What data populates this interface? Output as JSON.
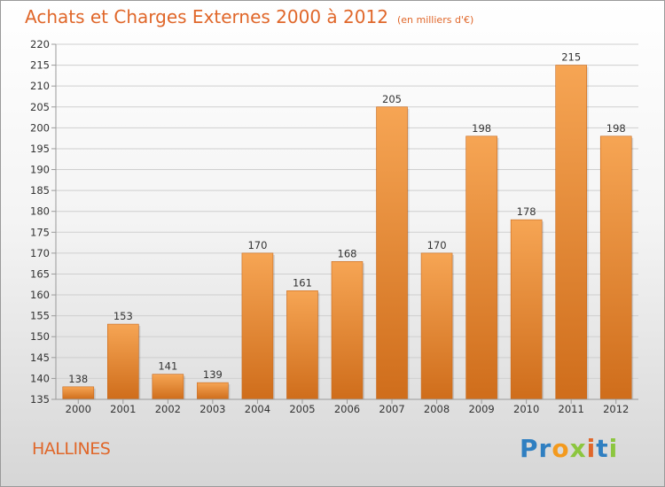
{
  "title": "Achats et Charges Externes 2000 à 2012",
  "unit_note": "(en milliers d'€)",
  "commune": "HALLINES",
  "logo": {
    "letters": [
      "P",
      "r",
      "o",
      "x",
      "i",
      "t",
      "i"
    ],
    "colors": [
      "#2f7fc1",
      "#2f7fc1",
      "#f39a1e",
      "#8cc63f",
      "#e0672a",
      "#2f7fc1",
      "#8cc63f"
    ]
  },
  "colors": {
    "bar_top": "#f6a554",
    "bar_bottom": "#cf6d1b",
    "grid": "#cfcfcf",
    "axis": "#9a9a9a",
    "accent": "#e0672a"
  },
  "chart_data": {
    "type": "bar",
    "categories": [
      "2000",
      "2001",
      "2002",
      "2003",
      "2004",
      "2005",
      "2006",
      "2007",
      "2008",
      "2009",
      "2010",
      "2011",
      "2012"
    ],
    "values": [
      138,
      153,
      141,
      139,
      170,
      161,
      168,
      205,
      170,
      198,
      178,
      215,
      198
    ],
    "ylim": [
      135,
      220
    ],
    "yticks": [
      135,
      140,
      145,
      150,
      155,
      160,
      165,
      170,
      175,
      180,
      185,
      190,
      195,
      200,
      205,
      210,
      215,
      220
    ],
    "grid": true,
    "data_labels": true
  }
}
